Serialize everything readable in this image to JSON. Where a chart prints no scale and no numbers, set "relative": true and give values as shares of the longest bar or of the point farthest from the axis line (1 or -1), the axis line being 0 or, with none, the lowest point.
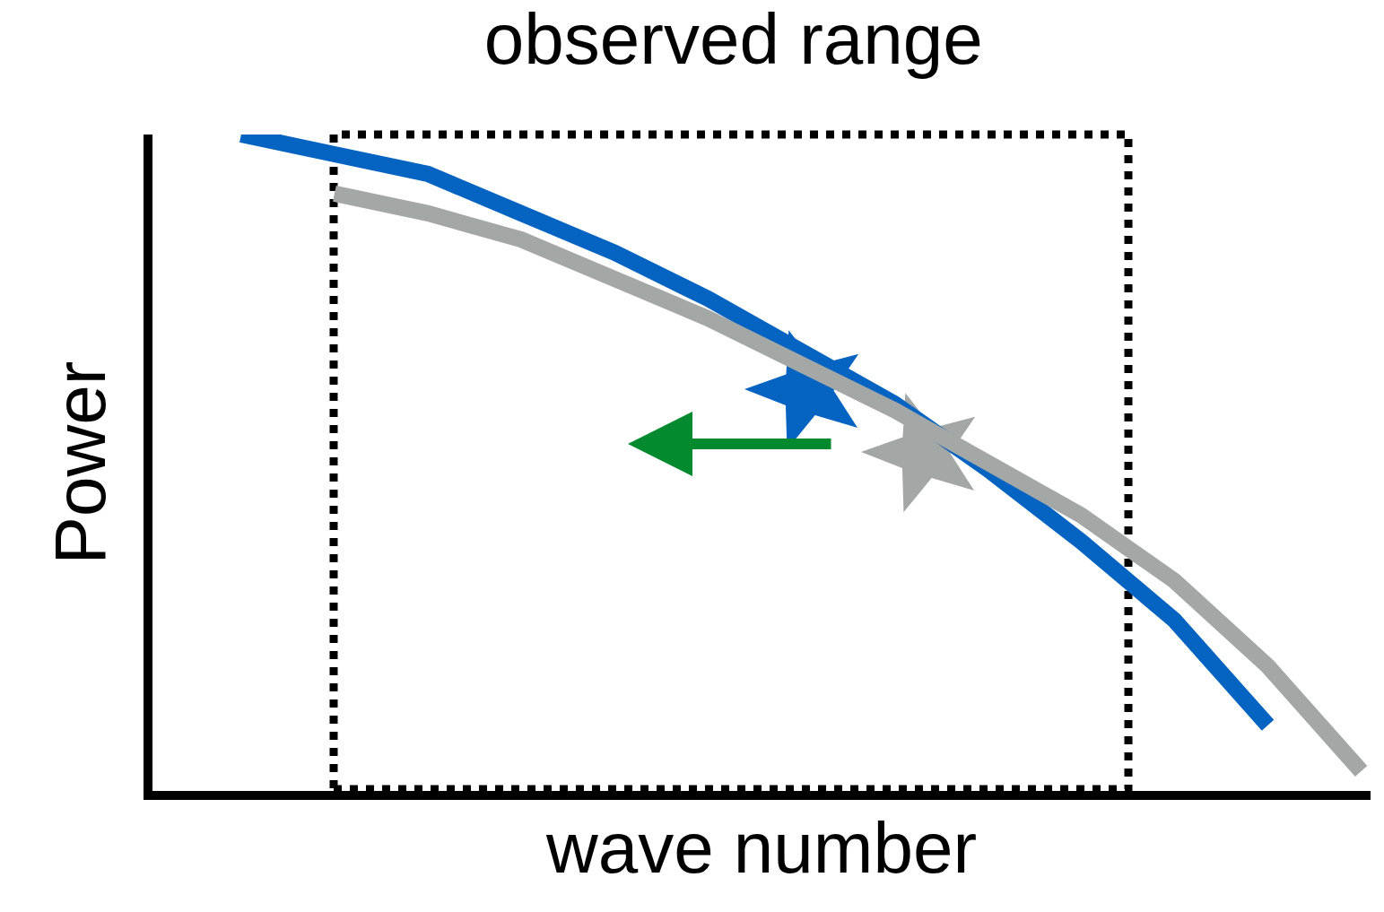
{
  "chart_data": {
    "type": "line",
    "relative": true,
    "title": "observed range",
    "xlabel": "wave number",
    "ylabel": "Power",
    "categories": [
      null,
      null,
      null,
      null,
      null,
      null,
      null,
      null,
      null,
      null,
      null,
      null,
      null
    ],
    "series": [
      {
        "color": "#0563c1",
        "values": [
          1,
          0.97,
          0.94,
          0.88,
          0.82,
          0.75,
          0.67,
          0.59,
          0.49,
          0.38,
          0.26,
          0.1,
          null
        ]
      },
      {
        "color": "#a3a7a6",
        "values": [
          null,
          0.91,
          0.88,
          0.84,
          0.78,
          0.72,
          0.65,
          0.58,
          0.5,
          0.42,
          0.32,
          0.19,
          0.03
        ]
      }
    ],
    "tick_labels": false,
    "grid": false
  }
}
